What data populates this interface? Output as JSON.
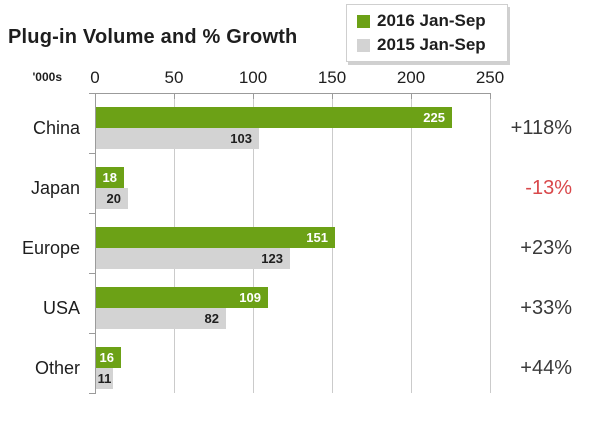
{
  "title": "Plug-in Volume and % Growth",
  "axis": {
    "unit_label": "'000s",
    "ticks": [
      0,
      50,
      100,
      150,
      200,
      250
    ],
    "max": 250
  },
  "legend": [
    {
      "label": "2016 Jan-Sep",
      "color": "#6CA116"
    },
    {
      "label": "2015 Jan-Sep",
      "color": "#D3D3D3"
    }
  ],
  "colors": {
    "green": "#6CA116",
    "gray": "#D3D3D3",
    "grid": "#CBCBCB",
    "axis": "#9B9B9B",
    "text": "#1E1E1E",
    "growth_text": "#3A3A3A",
    "growth_negative": "#D9484B",
    "value_on_green": "#FFFFFF",
    "value_on_gray": "#1E1E1E"
  },
  "chart_data": {
    "type": "bar",
    "orientation": "horizontal",
    "title": "Plug-in Volume and % Growth",
    "unit": "'000s",
    "categories": [
      "China",
      "Japan",
      "Europe",
      "USA",
      "Other"
    ],
    "series": [
      {
        "name": "2016 Jan-Sep",
        "color": "#6CA116",
        "values": [
          225,
          18,
          151,
          109,
          16
        ]
      },
      {
        "name": "2015 Jan-Sep",
        "color": "#D3D3D3",
        "values": [
          103,
          20,
          123,
          82,
          11
        ]
      }
    ],
    "growth_labels": [
      "+118%",
      "-13%",
      "+23%",
      "+33%",
      "+44%"
    ],
    "growth_negative_flags": [
      false,
      true,
      false,
      false,
      false
    ],
    "xlim": [
      0,
      250
    ],
    "grid": true,
    "legend_position": "top-right"
  }
}
